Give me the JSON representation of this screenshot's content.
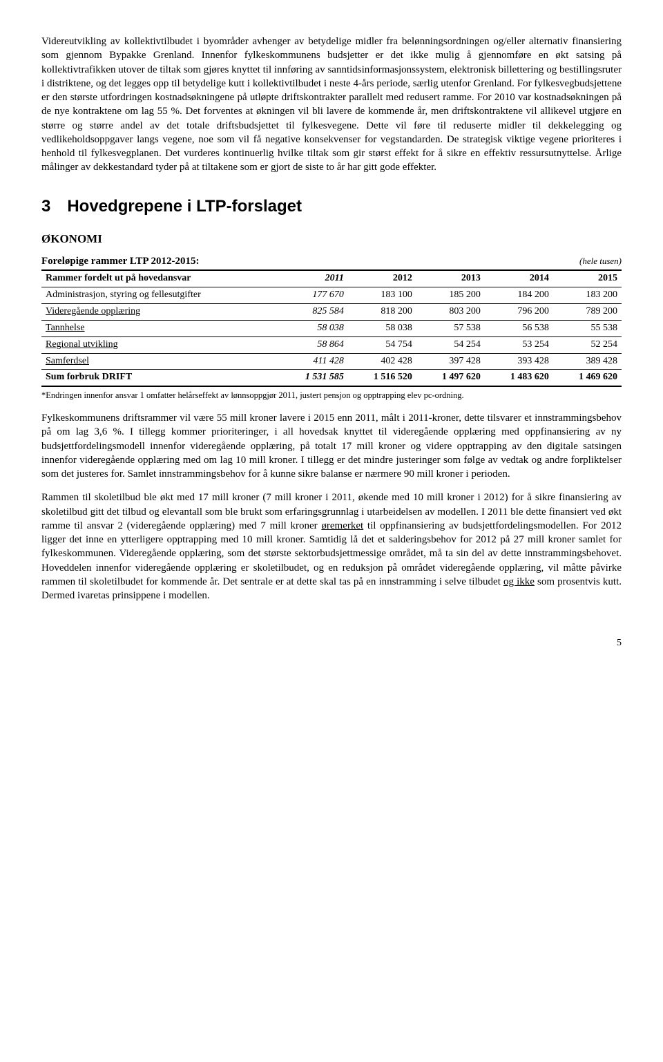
{
  "para1": "Videreutvikling av kollektivtilbudet i byområder avhenger av betydelige midler fra belønningsordningen og/eller alternativ finansiering som gjennom Bypakke Grenland. Innenfor fylkeskommunens budsjetter er det ikke mulig å gjennomføre en økt satsing på kollektivtrafikken utover de tiltak som gjøres knyttet til innføring av sanntidsinformasjonssystem, elektronisk billettering og bestillingsruter i distriktene, og det legges opp til betydelige kutt i kollektivtilbudet i neste 4-års periode, særlig utenfor Grenland. For fylkesvegbudsjettene er den største utfordringen kostnadsøkningene på utløpte driftskontrakter parallelt med redusert ramme. For 2010 var kostnadsøkningen på de nye kontraktene om lag 55 %. Det forventes at økningen vil bli lavere de kommende år, men driftskontraktene vil allikevel utgjøre en større og større andel av det totale driftsbudsjettet til fylkesvegene. Dette vil føre til reduserte midler til dekkelegging og vedlikeholdsoppgaver langs vegene, noe som vil få negative konsekvenser for vegstandarden. De strategisk viktige vegene prioriteres i henhold til fylkesvegplanen. Det vurderes kontinuerlig hvilke tiltak som gir størst effekt for å sikre en effektiv ressursutnyttelse. Årlige målinger av dekkestandard tyder på at tiltakene som er gjort de siste to år har gitt gode effekter.",
  "section_heading": "3 Hovedgrepene i LTP-forslaget",
  "okonomi_heading": "ØKONOMI",
  "ltp_label": "Foreløpige rammer LTP 2012-2015:",
  "ltp_unit": "(hele tusen)",
  "table": {
    "header": [
      "Rammer fordelt ut på hovedansvar",
      "2011",
      "2012",
      "2013",
      "2014",
      "2015"
    ],
    "rows": [
      {
        "label": "Administrasjon, styring og fellesutgifter",
        "y2011": "177 670",
        "y2012": "183 100",
        "y2013": "185 200",
        "y2014": "184 200",
        "y2015": "183 200",
        "underline": false
      },
      {
        "label": "Videregående opplæring",
        "y2011": "825 584",
        "y2012": "818 200",
        "y2013": "803 200",
        "y2014": "796 200",
        "y2015": "789 200",
        "underline": true
      },
      {
        "label": "Tannhelse",
        "y2011": "58 038",
        "y2012": "58 038",
        "y2013": "57 538",
        "y2014": "56 538",
        "y2015": "55 538",
        "underline": true
      },
      {
        "label": "Regional utvikling",
        "y2011": "58 864",
        "y2012": "54 754",
        "y2013": "54 254",
        "y2014": "53 254",
        "y2015": "52 254",
        "underline": true
      },
      {
        "label": "Samferdsel",
        "y2011": "411 428",
        "y2012": "402 428",
        "y2013": "397 428",
        "y2014": "393 428",
        "y2015": "389 428",
        "underline": true
      }
    ],
    "sum": {
      "label": "Sum forbruk DRIFT",
      "y2011": "1 531 585",
      "y2012": "1 516 520",
      "y2013": "1 497 620",
      "y2014": "1 483 620",
      "y2015": "1 469 620"
    }
  },
  "footnote": "*Endringen innenfor ansvar 1 omfatter helårseffekt av lønnsoppgjør 2011, justert pensjon og opptrapping elev pc-ordning.",
  "para2": "Fylkeskommunens driftsrammer vil være 55 mill kroner lavere i 2015 enn 2011, målt i 2011-kroner, dette tilsvarer et innstrammingsbehov på om lag 3,6 %. I tillegg kommer prioriteringer, i all hovedsak knyttet til videregående opplæring med oppfinansiering av ny budsjettfordelingsmodell innenfor videregående opplæring, på totalt 17 mill kroner og videre opptrapping av den digitale satsingen innenfor videregående opplæring med om lag 10 mill kroner. I tillegg er det mindre justeringer som følge av vedtak og andre forpliktelser som det justeres for. Samlet innstrammingsbehov for å kunne sikre balanse er nærmere 90 mill kroner i perioden.",
  "para3_pre": "Rammen til skoletilbud ble økt med 17 mill kroner (7 mill kroner i 2011, økende med 10 mill kroner i 2012) for å sikre finansiering av skoletilbud gitt det tilbud og elevantall som ble brukt som erfaringsgrunnlag i utarbeidelsen av modellen. I 2011 ble dette finansiert ved økt ramme til ansvar 2 (videregående opplæring) med 7 mill kroner ",
  "para3_ore": "øremerket",
  "para3_mid": " til oppfinansiering av budsjettfordelingsmodellen. For 2012 ligger det inne en ytterligere opptrapping med 10 mill kroner. Samtidig lå det et salderingsbehov for 2012 på 27 mill kroner samlet for fylkeskommunen. Videregående opplæring, som det største sektorbudsjettmessige området, må ta sin del av dette innstrammingsbehovet. Hoveddelen innenfor videregående opplæring er skoletilbudet, og en reduksjon på området videregående opplæring, vil måtte påvirke rammen til skoletilbudet for kommende år. Det sentrale er at dette skal tas på en innstramming i selve tilbudet ",
  "para3_ogikke": "og ikke",
  "para3_post": " som prosentvis kutt. Dermed ivaretas prinsippene i modellen.",
  "page_number": "5"
}
